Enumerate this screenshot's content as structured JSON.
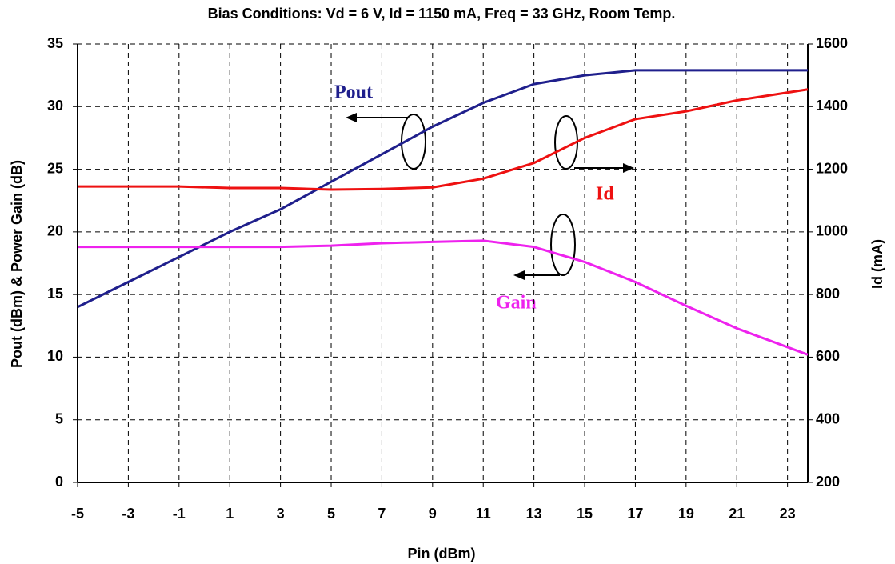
{
  "chart_data": {
    "type": "line",
    "title": "Bias Conditions:  Vd = 6 V, Id = 1150 mA, Freq = 33 GHz, Room Temp.",
    "x_label": "Pin (dBm)",
    "y_label": "Pout (dBm) & Power Gain (dB)",
    "y2_label": "Id (mA)",
    "x": [
      -5,
      -3,
      -1,
      1,
      3,
      5,
      7,
      9,
      11,
      13,
      15,
      17,
      19,
      21,
      23.8
    ],
    "series": [
      {
        "name": "Pout",
        "color": "#1f1f8c",
        "values": [
          14,
          16,
          18,
          20,
          21.8,
          24,
          26.2,
          28.4,
          30.3,
          31.8,
          32.5,
          32.9,
          32.9,
          32.9,
          32.9
        ]
      },
      {
        "name": "Id",
        "color": "#ee1111",
        "axis": "y2",
        "values": [
          1145,
          1145,
          1145,
          1140,
          1140,
          1135,
          1137,
          1142,
          1170,
          1220,
          1300,
          1360,
          1385,
          1420,
          1455
        ]
      },
      {
        "name": "Gain",
        "color": "#ee22ee",
        "values": [
          18.8,
          18.8,
          18.8,
          18.8,
          18.8,
          18.9,
          19.1,
          19.2,
          19.3,
          18.8,
          17.6,
          16.0,
          14.1,
          12.3,
          10.2
        ]
      }
    ],
    "xlim": [
      -5,
      23.8
    ],
    "xticks": [
      -5,
      -3,
      -1,
      1,
      3,
      5,
      7,
      9,
      11,
      13,
      15,
      17,
      19,
      21,
      23
    ],
    "ylim": [
      0,
      35
    ],
    "yticks": [
      0,
      5,
      10,
      15,
      20,
      25,
      30,
      35
    ],
    "y2lim": [
      200,
      1600
    ],
    "y2ticks": [
      200,
      400,
      600,
      800,
      1000,
      1200,
      1400,
      1600
    ],
    "grid": true
  }
}
